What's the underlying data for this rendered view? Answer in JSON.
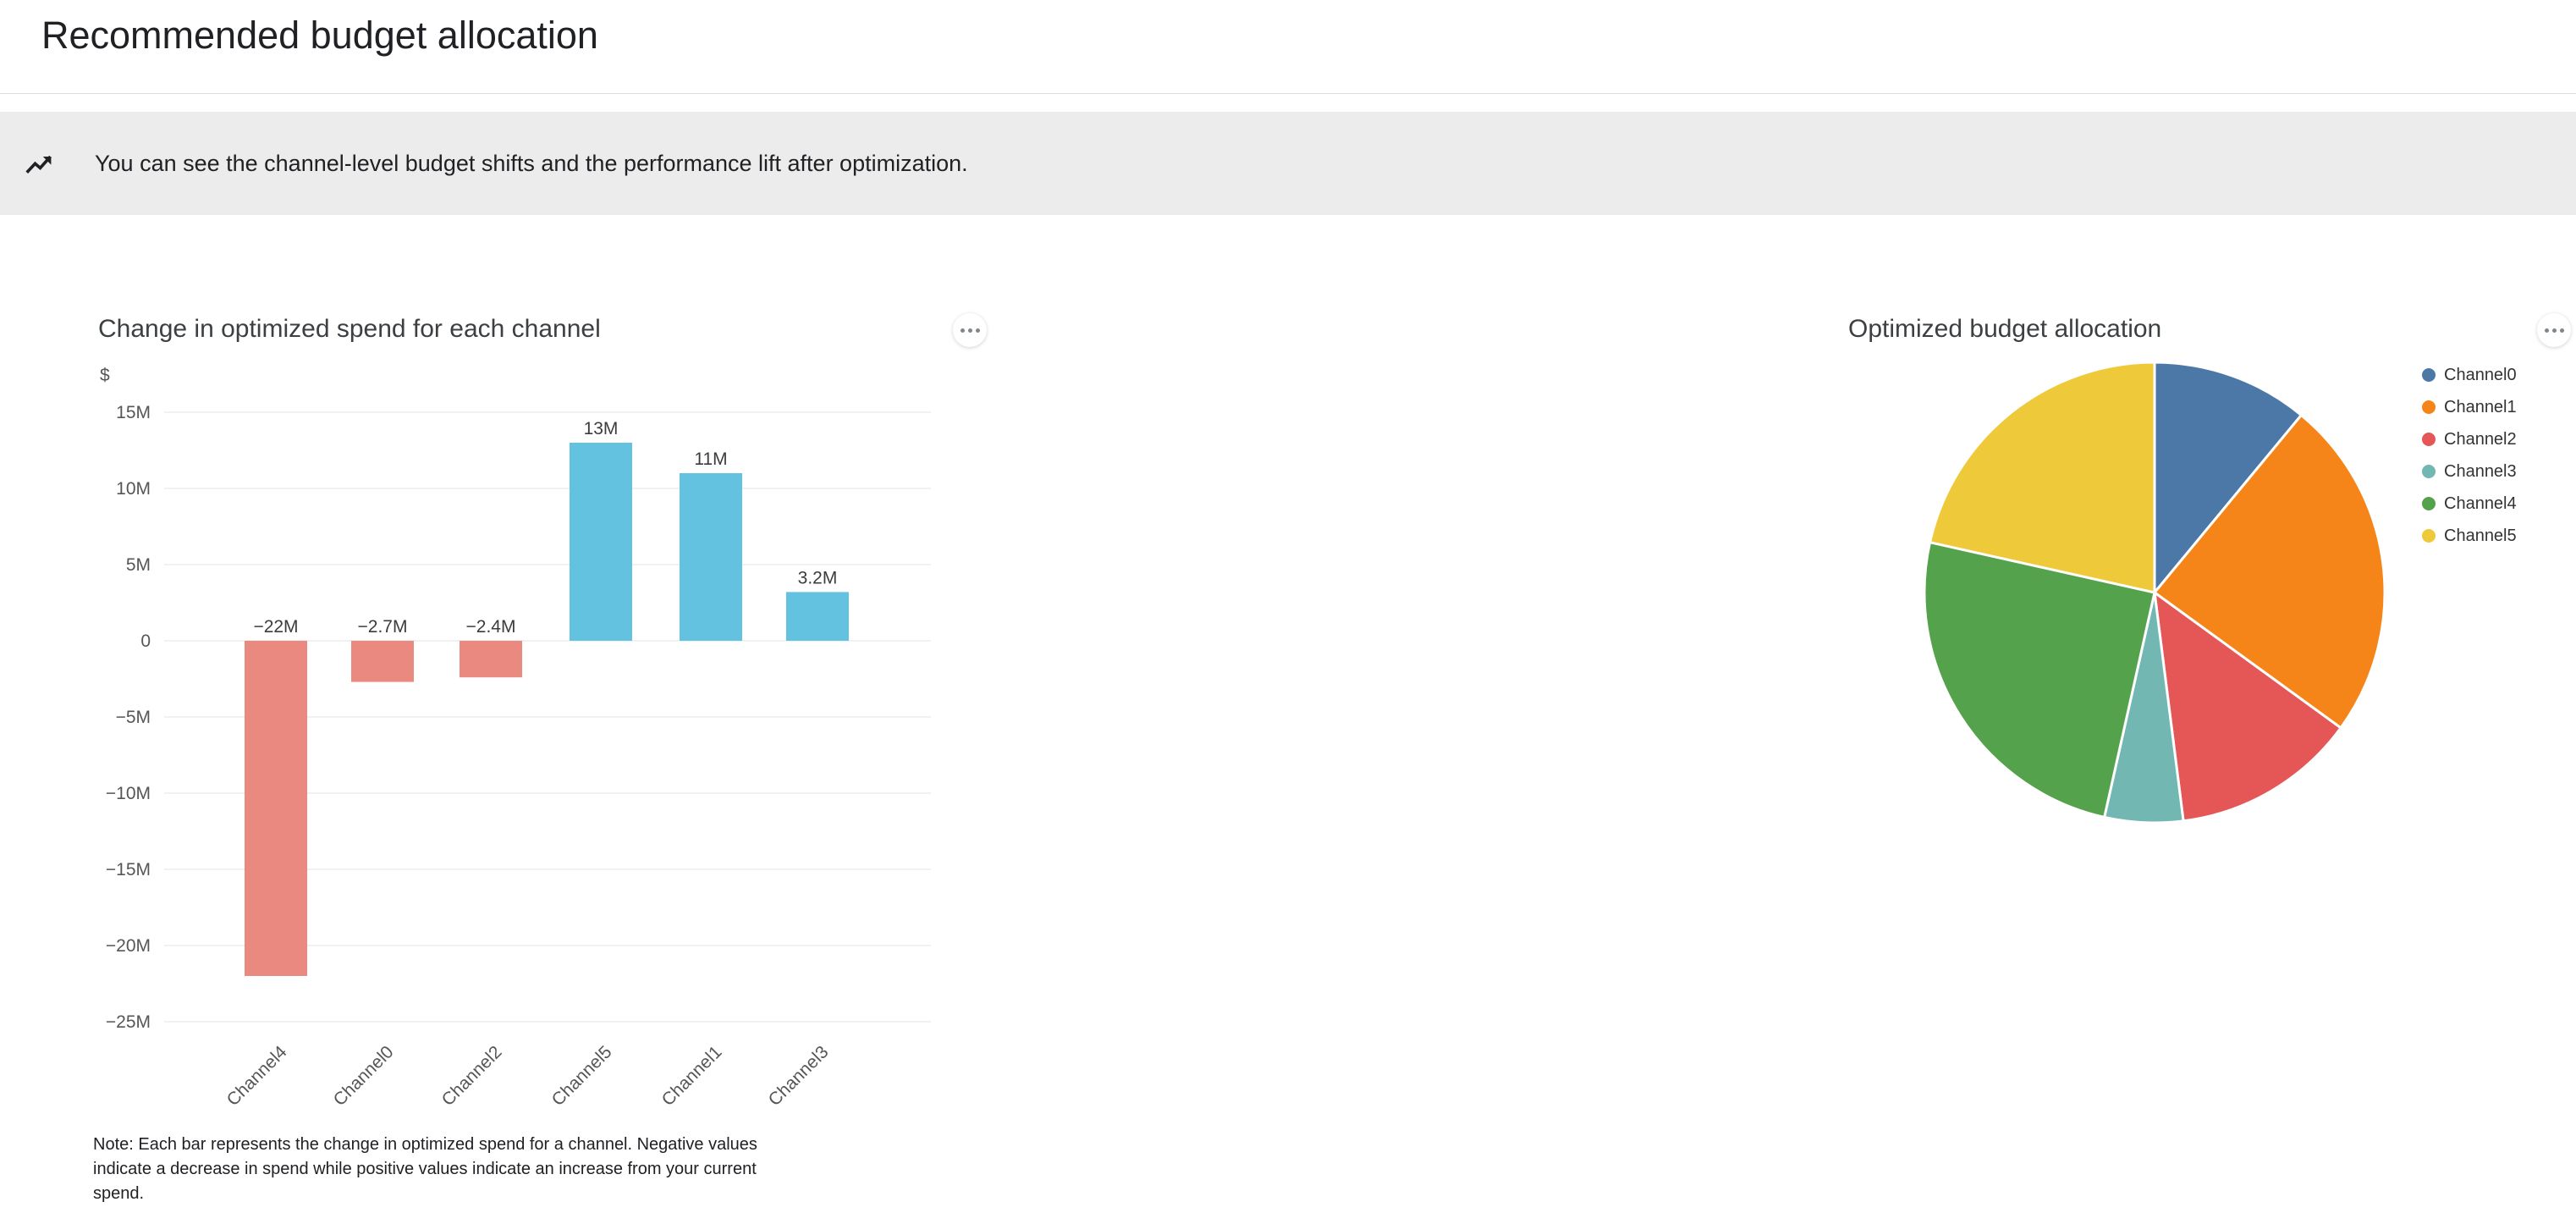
{
  "page": {
    "title": "Recommended budget allocation"
  },
  "banner": {
    "icon": "insights-icon",
    "text": "You can see the channel-level budget shifts and the performance lift after optimization."
  },
  "cards": {
    "spend_delta": {
      "title": "Change in optimized spend for each channel",
      "menu_icon": "more-options-icon"
    },
    "allocation": {
      "title": "Optimized budget allocation",
      "menu_icon": "more-options-icon"
    }
  },
  "note": "Note: Each bar represents the change in optimized spend for a channel. Negative values indicate a decrease in spend while positive values indicate an increase from your current spend.",
  "chart_data": [
    {
      "type": "bar",
      "title": "Change in optimized spend for each channel",
      "ylabel": "$",
      "categories": [
        "Channel4",
        "Channel0",
        "Channel2",
        "Channel5",
        "Channel1",
        "Channel3"
      ],
      "values_millions": [
        -22,
        -2.7,
        -2.4,
        13,
        11,
        3.2
      ],
      "value_labels": [
        "−22M",
        "−2.7M",
        "−2.4M",
        "13M",
        "11M",
        "3.2M"
      ],
      "y_ticks": [
        "15M",
        "10M",
        "5M",
        "0",
        "−5M",
        "−10M",
        "−15M",
        "−20M",
        "−25M"
      ],
      "y_tick_values_millions": [
        15,
        10,
        5,
        0,
        -5,
        -10,
        -15,
        -20,
        -25
      ],
      "ylim_millions": [
        -25,
        15
      ],
      "grid": true,
      "legend_position": "none",
      "bar_color_positive": "#62c2e0",
      "bar_color_negative": "#e9897f"
    },
    {
      "type": "pie",
      "title": "Optimized budget allocation",
      "labels": [
        "Channel0",
        "Channel1",
        "Channel2",
        "Channel3",
        "Channel4",
        "Channel5"
      ],
      "values_percent": [
        11,
        24,
        13,
        5.5,
        25,
        21.5
      ],
      "colors": [
        "#4c78a8",
        "#f58518",
        "#e45756",
        "#72b7b2",
        "#54a24b",
        "#eeca3b"
      ],
      "legend_position": "right"
    }
  ]
}
